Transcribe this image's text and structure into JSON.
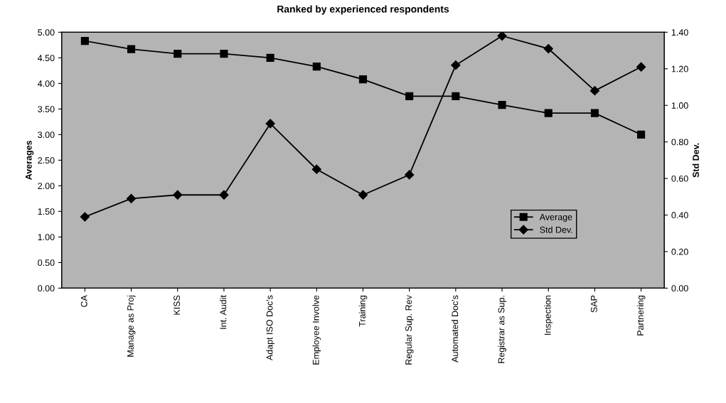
{
  "chart_data": {
    "type": "line",
    "title": "Ranked by experienced respondents",
    "ylabel": "Averages",
    "y2label": "Std Dev.",
    "categories": [
      "CA",
      "Manage as Proj",
      "KISS",
      "Int. Audit",
      "Adapt ISO Doc's",
      "Employee Involve",
      "Training",
      "Regular Sup. Rev",
      "Automated Doc's",
      "Registrar as Sup.",
      "Inspection",
      "SAP",
      "Partnering"
    ],
    "series": [
      {
        "name": "Average",
        "color": "#000000",
        "marker": "square",
        "values": [
          4.83,
          4.67,
          4.58,
          4.58,
          4.5,
          4.33,
          4.08,
          3.75,
          3.75,
          3.58,
          3.42,
          3.42,
          3.0
        ]
      },
      {
        "name": "Std Dev.",
        "color": "#000000",
        "marker": "diamond",
        "axis": "y2",
        "values": [
          0.39,
          0.49,
          0.51,
          0.51,
          0.9,
          0.65,
          0.51,
          0.62,
          1.22,
          1.38,
          1.31,
          1.08,
          1.21
        ]
      }
    ],
    "ylim": [
      0,
      5
    ],
    "yticks": [
      {
        "value": 0,
        "label": "0.00"
      },
      {
        "value": 0.5,
        "label": "0.50"
      },
      {
        "value": 1,
        "label": "1.00"
      },
      {
        "value": 1.5,
        "label": "1.50"
      },
      {
        "value": 2,
        "label": "2.00"
      },
      {
        "value": 2.5,
        "label": "2.50"
      },
      {
        "value": 3,
        "label": "3.00"
      },
      {
        "value": 3.5,
        "label": "3.50"
      },
      {
        "value": 4,
        "label": "4.00"
      },
      {
        "value": 4.5,
        "label": "4.50"
      },
      {
        "value": 5,
        "label": "5.00"
      }
    ],
    "y2lim": [
      0,
      1.4
    ],
    "y2ticks": [
      {
        "value": 0,
        "label": "0.00"
      },
      {
        "value": 0.2,
        "label": "0.20"
      },
      {
        "value": 0.4,
        "label": "0.40"
      },
      {
        "value": 0.6,
        "label": "0.60"
      },
      {
        "value": 0.8,
        "label": "0.80"
      },
      {
        "value": 1.0,
        "label": "1.00"
      },
      {
        "value": 1.2,
        "label": "1.20"
      },
      {
        "value": 1.4,
        "label": "1.40"
      }
    ],
    "legend": "bottom right",
    "line_style": "solid"
  }
}
